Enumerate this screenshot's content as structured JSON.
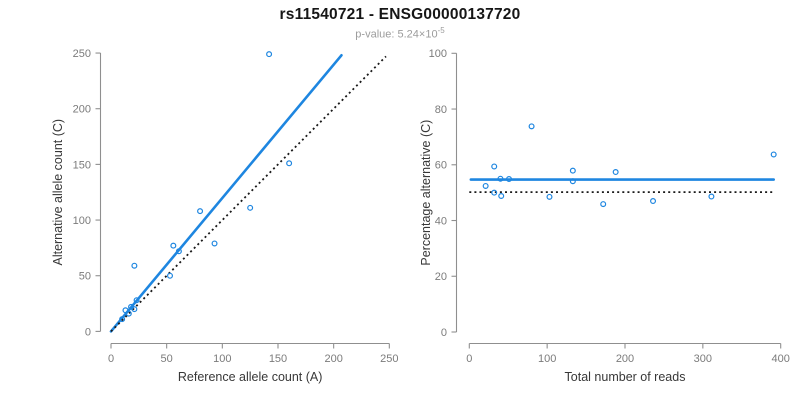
{
  "header": {
    "title": "rs11540721 - ENSG00000137720",
    "pvalue_base": "p-value: 5.24×10",
    "pvalue_exponent": "-5"
  },
  "colors": {
    "accent_blue": "#1E86E0",
    "dotted_line": "#1a1a1a",
    "axis_line": "#8f8f8f",
    "tick_text": "#7b7b7b",
    "axis_title_text": "#383838",
    "background": "#ffffff"
  },
  "chart_data": [
    {
      "type": "scatter",
      "name": "allele-counts-scatter",
      "xlabel": "Reference allele count (A)",
      "ylabel": "Alternative allele count (C)",
      "xlim": [
        0,
        250
      ],
      "ylim": [
        0,
        250
      ],
      "xticks": [
        0,
        50,
        100,
        150,
        200,
        250
      ],
      "yticks": [
        0,
        50,
        100,
        150,
        200,
        250
      ],
      "grid": false,
      "legend": false,
      "points": [
        [
          10,
          11
        ],
        [
          13,
          19
        ],
        [
          16,
          16
        ],
        [
          18,
          22
        ],
        [
          21,
          20
        ],
        [
          23,
          28
        ],
        [
          21,
          59
        ],
        [
          53,
          50
        ],
        [
          56,
          77
        ],
        [
          61,
          72
        ],
        [
          80,
          108
        ],
        [
          93,
          79
        ],
        [
          125,
          111
        ],
        [
          142,
          249
        ],
        [
          160,
          151
        ]
      ],
      "lines": [
        {
          "name": "regression-line",
          "style": "solid",
          "color_key": "accent_blue",
          "x1": 0,
          "y1": 0,
          "x2": 207,
          "y2": 248
        },
        {
          "name": "identity-line",
          "style": "dotted",
          "color_key": "dotted_line",
          "x1": 0,
          "y1": 0,
          "x2": 247,
          "y2": 247
        }
      ]
    },
    {
      "type": "scatter",
      "name": "percentage-vs-reads-scatter",
      "xlabel": "Total number of reads",
      "ylabel": "Percentage alternative (C)",
      "xlim": [
        0,
        400
      ],
      "ylim": [
        0,
        100
      ],
      "xticks": [
        0,
        100,
        200,
        300,
        400
      ],
      "yticks": [
        0,
        20,
        40,
        60,
        80,
        100
      ],
      "grid": false,
      "legend": false,
      "points": [
        [
          21,
          52.4
        ],
        [
          32,
          59.4
        ],
        [
          32,
          50.0
        ],
        [
          40,
          55.0
        ],
        [
          41,
          48.8
        ],
        [
          51,
          54.9
        ],
        [
          80,
          73.8
        ],
        [
          103,
          48.5
        ],
        [
          133,
          57.9
        ],
        [
          133,
          54.1
        ],
        [
          188,
          57.4
        ],
        [
          172,
          45.9
        ],
        [
          236,
          47.0
        ],
        [
          311,
          48.6
        ],
        [
          391,
          63.7
        ]
      ],
      "lines": [
        {
          "name": "mean-percentage-line",
          "style": "solid",
          "color_key": "accent_blue",
          "x1": 2,
          "y1": 54.7,
          "x2": 391,
          "y2": 54.7
        },
        {
          "name": "fifty-percent-line",
          "style": "dotted",
          "color_key": "dotted_line",
          "x1": 0,
          "y1": 50.2,
          "x2": 391,
          "y2": 50.2
        }
      ]
    }
  ]
}
